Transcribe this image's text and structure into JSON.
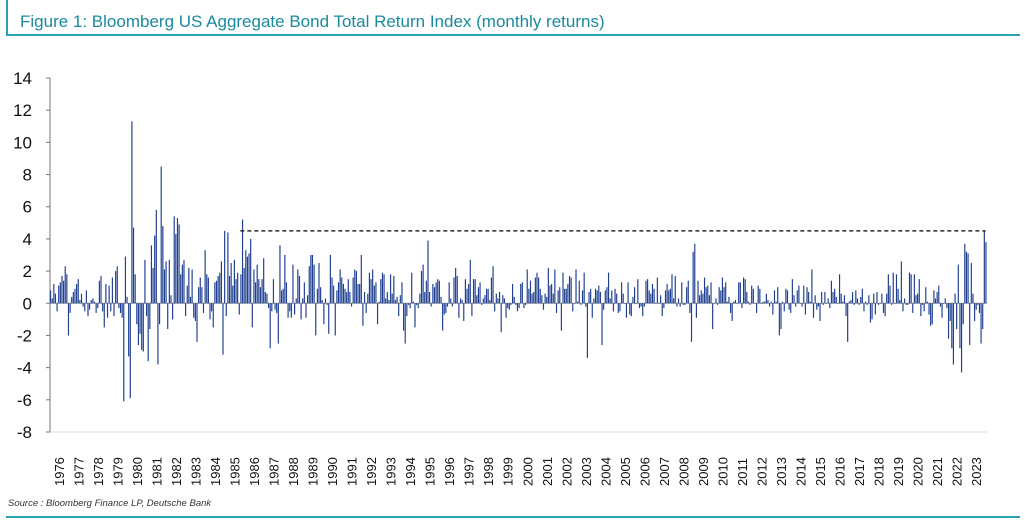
{
  "header": {
    "title": "Figure 1: Bloomberg US Aggregate Bond Total Return Index (monthly returns)"
  },
  "footer": {
    "source": "Source : Bloomberg Finance LP, Deutsche Bank"
  },
  "colors": {
    "bars": "#1f3f8f",
    "accent": "#2aa0b4",
    "reference_line": "#000000"
  },
  "chart_data": {
    "type": "bar",
    "title": "Figure 1: Bloomberg US Aggregate Bond Total Return Index (monthly returns)",
    "xlabel": "",
    "ylabel": "",
    "ylim": [
      -8,
      14
    ],
    "yticks": [
      14,
      12,
      10,
      8,
      6,
      4,
      2,
      0,
      -2,
      -4,
      -6,
      -8
    ],
    "years": [
      "1976",
      "1977",
      "1978",
      "1979",
      "1980",
      "1981",
      "1982",
      "1983",
      "1984",
      "1985",
      "1986",
      "1987",
      "1988",
      "1989",
      "1990",
      "1991",
      "1992",
      "1993",
      "1994",
      "1995",
      "1996",
      "1997",
      "1998",
      "1999",
      "2000",
      "2001",
      "2002",
      "2003",
      "2004",
      "2005",
      "2006",
      "2007",
      "2008",
      "2009",
      "2010",
      "2011",
      "2012",
      "2013",
      "2014",
      "2015",
      "2016",
      "2017",
      "2018",
      "2019",
      "2020",
      "2021",
      "2022",
      "2023"
    ],
    "reference_line": {
      "value": 4.5,
      "start_year": 1985.75,
      "end_year": 2023.92,
      "style": "dashed"
    },
    "grid": false,
    "legend": "none",
    "series": [
      {
        "start": "1976-01",
        "values": [
          [
            0.8,
            0.3,
            1.2,
            0.6,
            -0.5,
            1.1,
            1.3,
            1.7,
            1.4,
            2.3,
            1.8,
            -2.0
          ],
          [
            -0.6,
            0.4,
            0.7,
            0.9,
            1.2,
            1.5,
            0.2,
            0.6,
            -0.2,
            -0.5,
            0.8,
            -0.8
          ],
          [
            -0.4,
            0.2,
            0.3,
            0.1,
            -0.6,
            -0.3,
            1.4,
            1.7,
            -0.5,
            -1.5,
            1.2,
            -0.9
          ],
          [
            1.1,
            -0.5,
            1.6,
            -0.8,
            2.0,
            2.3,
            -0.3,
            -0.6,
            -0.9,
            -6.1,
            2.9,
            0.4
          ],
          [
            -3.3,
            -5.9,
            11.3,
            4.7,
            1.8,
            -1.3,
            -2.6,
            -1.9,
            -2.9,
            -3.0,
            2.7,
            -0.8
          ],
          [
            -3.6,
            -1.6,
            3.6,
            2.2,
            4.2,
            5.8,
            -3.8,
            -1.3,
            8.5,
            4.8,
            2.1,
            2.6
          ],
          [
            -1.6,
            2.7,
            0.5,
            -1.0,
            5.4,
            4.3,
            5.3,
            4.9,
            1.8,
            2.4,
            2.7,
            -0.8
          ],
          [
            1.1,
            2.2,
            0.4,
            2.1,
            -0.9,
            -1.1,
            -2.4,
            1.0,
            1.6,
            1.0,
            -0.6,
            3.3
          ],
          [
            1.8,
            1.6,
            -1.0,
            -0.5,
            -1.5,
            1.3,
            1.4,
            1.7,
            1.9,
            2.6,
            -3.2,
            4.5
          ],
          [
            -0.8,
            4.4,
            1.7,
            2.5,
            1.1,
            2.7,
            1.5,
            1.9,
            -0.7,
            1.8,
            5.2,
            2.2
          ],
          [
            3.3,
            2.9,
            3.1,
            4.0,
            -1.5,
            2.1,
            1.3,
            2.4,
            1.5,
            1.0,
            1.5,
            2.8
          ],
          [
            0.7,
            0.6,
            -0.3,
            -2.8,
            -0.5,
            1.5,
            -0.4,
            -0.6,
            -2.5,
            3.6,
            0.8,
            0.9
          ],
          [
            3.0,
            1.3,
            -0.9,
            -0.5,
            -0.9,
            2.4,
            -0.7,
            0.3,
            2.1,
            1.7,
            -1.0,
            0.3
          ],
          [
            1.3,
            -0.9,
            0.5,
            2.3,
            3.0,
            3.0,
            2.4,
            -2.0,
            0.9,
            2.5,
            1.0,
            0.2
          ],
          [
            -1.3,
            0.3,
            -0.1,
            -1.9,
            3.0,
            1.6,
            1.1,
            -2.0,
            0.8,
            1.3,
            2.1,
            1.6
          ],
          [
            1.2,
            0.9,
            0.7,
            1.5,
            0.7,
            -0.2,
            1.6,
            2.1,
            2.0,
            1.2,
            1.2,
            3.0
          ],
          [
            -1.4,
            0.7,
            -0.6,
            0.6,
            1.9,
            1.5,
            2.1,
            1.1,
            1.3,
            -1.3,
            0.1,
            1.5
          ],
          [
            1.9,
            1.8,
            0.3,
            0.7,
            0.2,
            1.8,
            0.6,
            1.7,
            0.2,
            0.4,
            -0.8,
            0.5
          ],
          [
            1.3,
            -1.7,
            -2.5,
            -0.8,
            -0.1,
            -0.3,
            1.9,
            0.1,
            -1.5,
            -0.1,
            -0.3,
            0.6
          ],
          [
            2.0,
            2.4,
            0.7,
            1.4,
            3.9,
            0.7,
            -0.2,
            1.2,
            1.0,
            1.3,
            1.5,
            1.4
          ],
          [
            0.4,
            -1.7,
            -0.7,
            -0.6,
            -0.2,
            1.3,
            0.3,
            -0.2,
            1.6,
            2.2,
            1.7,
            -0.9
          ],
          [
            0.3,
            0.2,
            -1.1,
            1.5,
            0.9,
            1.2,
            2.7,
            -0.8,
            1.5,
            1.5,
            0.5,
            1.0
          ],
          [
            1.3,
            -0.1,
            0.3,
            0.5,
            0.9,
            0.9,
            0.2,
            1.6,
            2.3,
            -0.5,
            0.6,
            0.3
          ],
          [
            0.7,
            -1.8,
            0.5,
            0.3,
            -0.9,
            -0.3,
            -0.4,
            -0.1,
            1.2,
            0.4,
            -0.1,
            -0.5
          ],
          [
            -0.3,
            1.2,
            1.3,
            -0.3,
            -0.1,
            2.1,
            0.9,
            1.4,
            0.6,
            0.7,
            1.6,
            1.9
          ],
          [
            1.6,
            0.9,
            0.5,
            -0.4,
            0.6,
            0.4,
            2.2,
            1.1,
            1.2,
            0.6,
            2.1,
            -0.6
          ],
          [
            0.8,
            1.0,
            -1.7,
            1.9,
            0.9,
            0.9,
            1.2,
            1.7,
            1.6,
            -0.5,
            0.0,
            2.1
          ],
          [
            0.1,
            1.4,
            -0.1,
            0.8,
            1.9,
            -0.2,
            -3.4,
            0.7,
            0.9,
            -0.9,
            0.3,
            0.9
          ],
          [
            0.8,
            1.1,
            0.7,
            -2.6,
            -0.4,
            0.8,
            1.0,
            1.9,
            0.3,
            0.8,
            -0.5,
            0.9
          ],
          [
            0.6,
            -0.6,
            -0.5,
            1.3,
            0.6,
            0.0,
            -0.9,
            1.3,
            -0.7,
            -0.8,
            0.4,
            1.0
          ],
          [
            0.0,
            1.5,
            -0.3,
            -0.2,
            -0.8,
            -0.2,
            1.4,
            1.5,
            0.8,
            0.6,
            1.2,
            0.9
          ],
          [
            0.0,
            1.6,
            0.0,
            0.5,
            -0.8,
            -0.3,
            0.8,
            1.2,
            0.8,
            0.9,
            1.8,
            0.3
          ],
          [
            1.7,
            -0.2,
            0.3,
            -0.2,
            1.3,
            -0.1,
            -0.1,
            1.0,
            1.4,
            -0.6,
            -2.4,
            3.2
          ],
          [
            3.7,
            -0.9,
            1.4,
            0.5,
            0.8,
            0.6,
            1.6,
            1.0,
            1.1,
            0.5,
            1.3,
            -1.6
          ],
          [
            0.0,
            0.3,
            -0.1,
            1.0,
            0.8,
            1.6,
            1.0,
            1.3,
            0.1,
            0.4,
            -0.6,
            -1.1
          ],
          [
            0.1,
            0.2,
            0.0,
            1.3,
            1.3,
            -0.3,
            1.6,
            1.5,
            0.7,
            0.1,
            -0.1,
            1.1
          ],
          [
            0.9,
            0.0,
            -0.6,
            1.1,
            0.9,
            0.0,
            0.1,
            0.1,
            0.6,
            0.2,
            -0.2,
            0.1
          ],
          [
            -0.7,
            0.8,
            0.1,
            1.0,
            -2.0,
            -1.6,
            0.1,
            -0.5,
            0.9,
            0.8,
            -0.4,
            -0.6
          ],
          [
            1.5,
            0.5,
            -0.2,
            0.8,
            1.1,
            0.0,
            -0.2,
            1.1,
            -0.7,
            1.0,
            0.7,
            0.1
          ],
          [
            2.1,
            -0.9,
            0.5,
            -0.4,
            -0.2,
            -1.1,
            0.7,
            -0.1,
            0.7,
            0.0,
            0.3,
            -0.3
          ],
          [
            1.4,
            0.7,
            0.9,
            0.4,
            0.0,
            1.8,
            0.6,
            0.1,
            0.5,
            -0.8,
            -2.4,
            0.1
          ],
          [
            0.2,
            0.7,
            -0.1,
            0.8,
            0.3,
            -0.1,
            0.4,
            0.9,
            -0.5,
            0.1,
            -0.1,
            0.5
          ],
          [
            -1.2,
            -1.0,
            0.6,
            -0.7,
            0.7,
            -0.1,
            0.0,
            0.6,
            -0.6,
            -0.8,
            0.6,
            1.8
          ],
          [
            1.1,
            -0.1,
            1.9,
            0.0,
            1.8,
            0.9,
            0.2,
            2.6,
            -0.5,
            0.3,
            -0.1,
            -0.1
          ],
          [
            1.9,
            1.8,
            -0.6,
            1.8,
            0.5,
            0.6,
            1.5,
            -0.8,
            -0.1,
            -0.5,
            1.0,
            0.1
          ],
          [
            -0.7,
            -1.4,
            -1.3,
            0.8,
            0.3,
            0.7,
            1.1,
            -0.2,
            -0.9,
            -0.03,
            0.3,
            -0.3
          ],
          [
            -2.2,
            -1.1,
            -2.8,
            -3.8,
            0.6,
            -1.6,
            2.4,
            -2.8,
            -4.3,
            -1.3,
            3.7,
            3.2
          ],
          [
            3.1,
            -2.6,
            2.5,
            0.6,
            -1.1,
            -0.4,
            -0.1,
            -0.6,
            -2.5,
            -1.6,
            4.5,
            3.8
          ]
        ]
      }
    ]
  }
}
